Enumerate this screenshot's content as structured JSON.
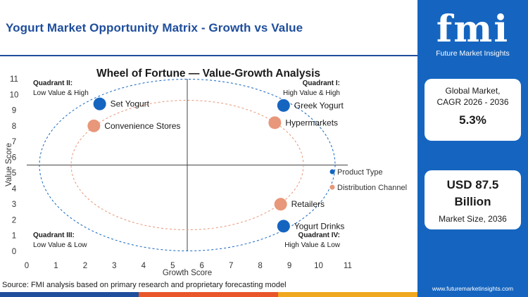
{
  "header": {
    "title": "Yogurt Market Opportunity Matrix - Growth vs Value"
  },
  "brand": {
    "logo_text": "fmi",
    "logo_subtitle": "Future Market Insights",
    "website": "www.futuremarketinsights.com"
  },
  "stats": {
    "cagr_label": "Global Market, CAGR 2026 - 2036",
    "cagr_value": "5.3%",
    "size_value": "USD 87.5 Billion",
    "size_label": "Market Size, 2036"
  },
  "footer": {
    "source": "Source: FMI analysis based on primary research and proprietary forecasting model"
  },
  "colors": {
    "brand_blue": "#1565c0",
    "title_blue": "#1f4e9c",
    "product_type": "#1565c0",
    "distribution_channel": "#e8977a",
    "bar": [
      "#1f4e9c",
      "#e8562a",
      "#f0a81e"
    ]
  },
  "chart_data": {
    "type": "scatter",
    "title": "Wheel of Fortune — Value-Growth  Analysis",
    "xlabel": "Growth Score",
    "ylabel": "Value Score",
    "xlim": [
      0,
      11
    ],
    "ylim": [
      0,
      11
    ],
    "xticks": [
      0,
      1,
      2,
      3,
      4,
      5,
      6,
      7,
      8,
      9,
      10,
      11
    ],
    "yticks": [
      0,
      1,
      2,
      3,
      4,
      5,
      6,
      7,
      8,
      9,
      10,
      11
    ],
    "divider": {
      "x": 5.5,
      "y": 5.5
    },
    "grid": false,
    "legend_position": "right",
    "quadrants": [
      {
        "name": "Quadrant II:",
        "desc": "Low Value & High"
      },
      {
        "name": "Quadrant I:",
        "desc": "High Value & High"
      },
      {
        "name": "Quadrant III:",
        "desc": "Low Value & Low"
      },
      {
        "name": "Quadrant IV:",
        "desc": "High Value & Low"
      }
    ],
    "series": [
      {
        "name": "Product Type",
        "color": "#1565c0",
        "points": [
          {
            "label": "Set Yogurt",
            "x": 2.5,
            "y": 9.4
          },
          {
            "label": "Greek Yogurt",
            "x": 8.8,
            "y": 9.3
          },
          {
            "label": "Yogurt Drinks",
            "x": 8.8,
            "y": 1.6
          }
        ]
      },
      {
        "name": "Distribution Channel",
        "color": "#e8977a",
        "points": [
          {
            "label": "Convenience Stores",
            "x": 2.3,
            "y": 8.0
          },
          {
            "label": "Hypermarkets",
            "x": 8.5,
            "y": 8.2
          },
          {
            "label": "Retailers",
            "x": 8.7,
            "y": 3.0
          }
        ]
      }
    ]
  }
}
